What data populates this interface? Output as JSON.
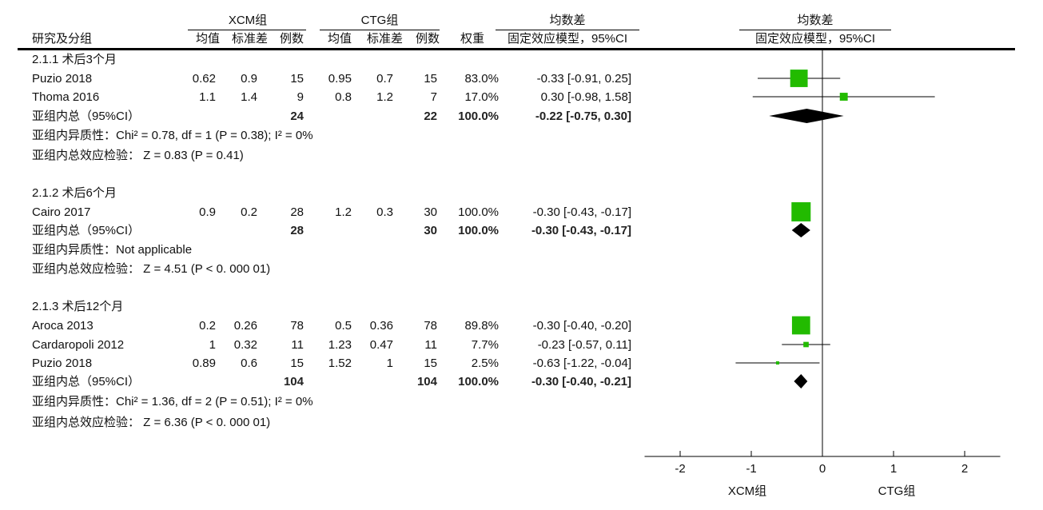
{
  "header": {
    "group_xcm": "XCM组",
    "group_ctg": "CTG组",
    "md_title": "均数差",
    "md_subtitle": "固定效应模型，95%CI",
    "plot_title": "均数差",
    "plot_subtitle": "固定效应模型，95%CI",
    "col_study": "研究及分组",
    "col_mean1": "均值",
    "col_sd1": "标准差",
    "col_n1": "例数",
    "col_mean2": "均值",
    "col_sd2": "标准差",
    "col_n2": "例数",
    "col_weight": "权重"
  },
  "groups": [
    {
      "title": "2.1.1 术后3个月",
      "studies": [
        {
          "name": "Puzio 2018",
          "m1": "0.62",
          "sd1": "0.9",
          "n1": "15",
          "m2": "0.95",
          "sd2": "0.7",
          "n2": "15",
          "w": "83.0%",
          "ci": "-0.33 [-0.91, 0.25]"
        },
        {
          "name": "Thoma 2016",
          "m1": "1.1",
          "sd1": "1.4",
          "n1": "9",
          "m2": "0.8",
          "sd2": "1.2",
          "n2": "7",
          "w": "17.0%",
          "ci": "0.30 [-0.98, 1.58]"
        }
      ],
      "subtotal": {
        "label": "亚组内总（95%CI）",
        "n1": "24",
        "n2": "22",
        "w": "100.0%",
        "ci": "-0.22 [-0.75, 0.30]"
      },
      "heterogeneity": "亚组内异质性：Chi² = 0.78, df = 1 (P = 0.38); I² = 0%",
      "effect_test": "亚组内总效应检验：  Z = 0.83 (P = 0.41)"
    },
    {
      "title": "2.1.2 术后6个月",
      "studies": [
        {
          "name": "Cairo 2017",
          "m1": "0.9",
          "sd1": "0.2",
          "n1": "28",
          "m2": "1.2",
          "sd2": "0.3",
          "n2": "30",
          "w": "100.0%",
          "ci": "-0.30 [-0.43, -0.17]"
        }
      ],
      "subtotal": {
        "label": "亚组内总（95%CI）",
        "n1": "28",
        "n2": "30",
        "w": "100.0%",
        "ci": "-0.30 [-0.43, -0.17]"
      },
      "heterogeneity": "亚组内异质性：Not applicable",
      "effect_test": "亚组内总效应检验：  Z = 4.51 (P < 0. 000 01)"
    },
    {
      "title": "2.1.3 术后12个月",
      "studies": [
        {
          "name": "Aroca 2013",
          "m1": "0.2",
          "sd1": "0.26",
          "n1": "78",
          "m2": "0.5",
          "sd2": "0.36",
          "n2": "78",
          "w": "89.8%",
          "ci": "-0.30 [-0.40, -0.20]"
        },
        {
          "name": "Cardaropoli 2012",
          "m1": "1",
          "sd1": "0.32",
          "n1": "11",
          "m2": "1.23",
          "sd2": "0.47",
          "n2": "11",
          "w": "7.7%",
          "ci": "-0.23 [-0.57, 0.11]"
        },
        {
          "name": "Puzio 2018",
          "m1": "0.89",
          "sd1": "0.6",
          "n1": "15",
          "m2": "1.52",
          "sd2": "1",
          "n2": "15",
          "w": "2.5%",
          "ci": "-0.63 [-1.22, -0.04]"
        }
      ],
      "subtotal": {
        "label": "亚组内总（95%CI）",
        "n1": "104",
        "n2": "104",
        "w": "100.0%",
        "ci": "-0.30 [-0.40, -0.21]"
      },
      "heterogeneity": "亚组内异质性：Chi² = 1.36, df = 2 (P = 0.51); I² = 0%",
      "effect_test": "亚组内总效应检验：  Z = 6.36 (P <  0. 000 01)"
    }
  ],
  "chart_data": {
    "type": "scatter",
    "subtype": "forest",
    "xlim": [
      -2.5,
      2.5
    ],
    "xticks": [
      "-2",
      "-1",
      "0",
      "1",
      "2"
    ],
    "xlabel_left": "XCM组",
    "xlabel_right": "CTG组",
    "study_color": "#22bb00",
    "summary_color": "#000000",
    "rows": [
      {
        "kind": "study",
        "label": "Puzio 2018",
        "est": -0.33,
        "lo": -0.91,
        "hi": 0.25,
        "weight": 83.0
      },
      {
        "kind": "study",
        "label": "Thoma 2016",
        "est": 0.3,
        "lo": -0.98,
        "hi": 1.58,
        "weight": 17.0
      },
      {
        "kind": "summary",
        "label": "2.1.1 subtotal",
        "est": -0.22,
        "lo": -0.75,
        "hi": 0.3
      },
      {
        "kind": "study",
        "label": "Cairo 2017",
        "est": -0.3,
        "lo": -0.43,
        "hi": -0.17,
        "weight": 100.0
      },
      {
        "kind": "summary",
        "label": "2.1.2 subtotal",
        "est": -0.3,
        "lo": -0.43,
        "hi": -0.17
      },
      {
        "kind": "study",
        "label": "Aroca 2013",
        "est": -0.3,
        "lo": -0.4,
        "hi": -0.2,
        "weight": 89.8
      },
      {
        "kind": "study",
        "label": "Cardaropoli 2012",
        "est": -0.23,
        "lo": -0.57,
        "hi": 0.11,
        "weight": 7.7
      },
      {
        "kind": "study",
        "label": "Puzio 2018",
        "est": -0.63,
        "lo": -1.22,
        "hi": -0.04,
        "weight": 2.5
      },
      {
        "kind": "summary",
        "label": "2.1.3 subtotal",
        "est": -0.3,
        "lo": -0.4,
        "hi": -0.21
      }
    ]
  }
}
